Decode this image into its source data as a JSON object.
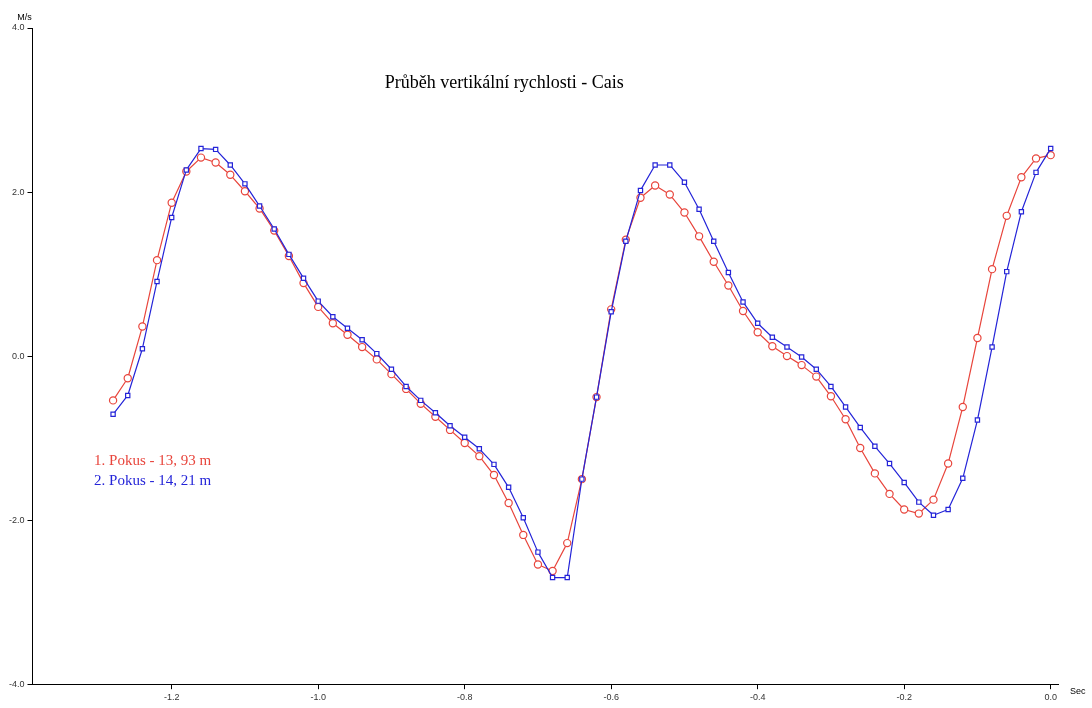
{
  "chart_data": {
    "type": "line",
    "title": "Průběh vertikální rychlosti - Cais",
    "xlabel": "Sec",
    "ylabel": "M/s",
    "x": [
      -1.28,
      -1.26,
      -1.24,
      -1.22,
      -1.2,
      -1.18,
      -1.16,
      -1.14,
      -1.12,
      -1.1,
      -1.08,
      -1.06,
      -1.04,
      -1.02,
      -1.0,
      -0.98,
      -0.96,
      -0.94,
      -0.92,
      -0.9,
      -0.88,
      -0.86,
      -0.84,
      -0.82,
      -0.8,
      -0.78,
      -0.76,
      -0.74,
      -0.72,
      -0.7,
      -0.68,
      -0.66,
      -0.64,
      -0.62,
      -0.6,
      -0.58,
      -0.56,
      -0.54,
      -0.52,
      -0.5,
      -0.48,
      -0.46,
      -0.44,
      -0.42,
      -0.4,
      -0.38,
      -0.36,
      -0.34,
      -0.32,
      -0.3,
      -0.28,
      -0.26,
      -0.24,
      -0.22,
      -0.2,
      -0.18,
      -0.16,
      -0.14,
      -0.12,
      -0.1,
      -0.08,
      -0.06,
      -0.04,
      -0.02,
      0.0
    ],
    "series": [
      {
        "name": "1. Pokus - 13, 93 m",
        "color": "#e8453c",
        "marker": "circle",
        "values": [
          -0.54,
          -0.27,
          0.36,
          1.17,
          1.87,
          2.25,
          2.42,
          2.36,
          2.21,
          2.01,
          1.8,
          1.53,
          1.22,
          0.89,
          0.6,
          0.4,
          0.26,
          0.11,
          -0.04,
          -0.22,
          -0.4,
          -0.58,
          -0.74,
          -0.9,
          -1.06,
          -1.22,
          -1.45,
          -1.79,
          -2.18,
          -2.54,
          -2.62,
          -2.28,
          -1.5,
          -0.5,
          0.57,
          1.42,
          1.93,
          2.08,
          1.97,
          1.75,
          1.46,
          1.15,
          0.86,
          0.55,
          0.29,
          0.12,
          0.0,
          -0.11,
          -0.25,
          -0.49,
          -0.77,
          -1.12,
          -1.43,
          -1.68,
          -1.87,
          -1.92,
          -1.75,
          -1.31,
          -0.62,
          0.22,
          1.06,
          1.71,
          2.18,
          2.41,
          2.45
        ]
      },
      {
        "name": "2. Pokus - 14, 21 m",
        "color": "#2424d8",
        "marker": "square",
        "values": [
          -0.71,
          -0.48,
          0.09,
          0.91,
          1.69,
          2.27,
          2.53,
          2.52,
          2.33,
          2.1,
          1.83,
          1.55,
          1.24,
          0.95,
          0.67,
          0.48,
          0.34,
          0.2,
          0.03,
          -0.16,
          -0.37,
          -0.54,
          -0.69,
          -0.85,
          -0.99,
          -1.13,
          -1.32,
          -1.6,
          -1.97,
          -2.39,
          -2.7,
          -2.7,
          -1.5,
          -0.5,
          0.54,
          1.4,
          2.02,
          2.33,
          2.33,
          2.12,
          1.79,
          1.4,
          1.02,
          0.66,
          0.4,
          0.23,
          0.11,
          -0.01,
          -0.16,
          -0.37,
          -0.62,
          -0.87,
          -1.1,
          -1.31,
          -1.54,
          -1.78,
          -1.94,
          -1.87,
          -1.49,
          -0.78,
          0.11,
          1.03,
          1.76,
          2.24,
          2.53
        ]
      }
    ],
    "xlim": [
      -1.39,
      0.01
    ],
    "xticks": [
      {
        "value": -1.2,
        "label": "-1.2"
      },
      {
        "value": -1.0,
        "label": "-1.0"
      },
      {
        "value": -0.8,
        "label": "-0.8"
      },
      {
        "value": -0.6,
        "label": "-0.6"
      },
      {
        "value": -0.4,
        "label": "-0.4"
      },
      {
        "value": -0.2,
        "label": "-0.2"
      },
      {
        "value": 0.0,
        "label": "0.0"
      }
    ],
    "ylim": [
      -4,
      4
    ],
    "yticks": [
      {
        "value": -4,
        "label": "-4.0"
      },
      {
        "value": -2,
        "label": "-2.0"
      },
      {
        "value": 0,
        "label": "0.0"
      },
      {
        "value": 2,
        "label": "2.0"
      },
      {
        "value": 4,
        "label": "4.0"
      }
    ],
    "grid": false,
    "legend": "left",
    "line_style": "solid"
  }
}
